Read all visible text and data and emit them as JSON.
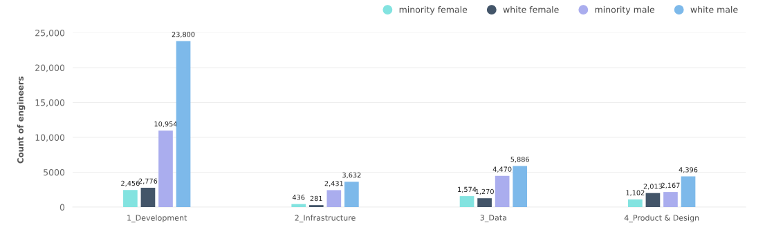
{
  "chart_data": {
    "type": "bar",
    "ylabel": "Count of engineers",
    "categories": [
      "1_Development",
      "2_Infrastructure",
      "3_Data",
      "4_Product & Design"
    ],
    "series": [
      {
        "name": "minority female",
        "color": "#83e3e0",
        "values": [
          2456,
          436,
          1574,
          1102
        ],
        "value_labels": [
          "2,456",
          "436",
          "1,574",
          "1,102"
        ]
      },
      {
        "name": "white female",
        "color": "#435569",
        "values": [
          2776,
          281,
          1270,
          2013
        ],
        "value_labels": [
          "2,776",
          "281",
          "1,270",
          "2,013"
        ]
      },
      {
        "name": "minority male",
        "color": "#aaadee",
        "values": [
          10954,
          2431,
          4470,
          2167
        ],
        "value_labels": [
          "10,954",
          "2,431",
          "4,470",
          "2,167"
        ]
      },
      {
        "name": "white male",
        "color": "#7db9ea",
        "values": [
          23800,
          3632,
          5886,
          4396
        ],
        "value_labels": [
          "23,800",
          "3,632",
          "5,886",
          "4,396"
        ]
      }
    ],
    "ylim": [
      0,
      25000
    ],
    "yticks": [
      {
        "value": 0,
        "label": "0"
      },
      {
        "value": 5000,
        "label": "5000"
      },
      {
        "value": 10000,
        "label": "10,000"
      },
      {
        "value": 15000,
        "label": "15,000"
      },
      {
        "value": 20000,
        "label": "20,000"
      },
      {
        "value": 25000,
        "label": "25,000"
      }
    ],
    "grid": "y",
    "legend": "top right"
  }
}
